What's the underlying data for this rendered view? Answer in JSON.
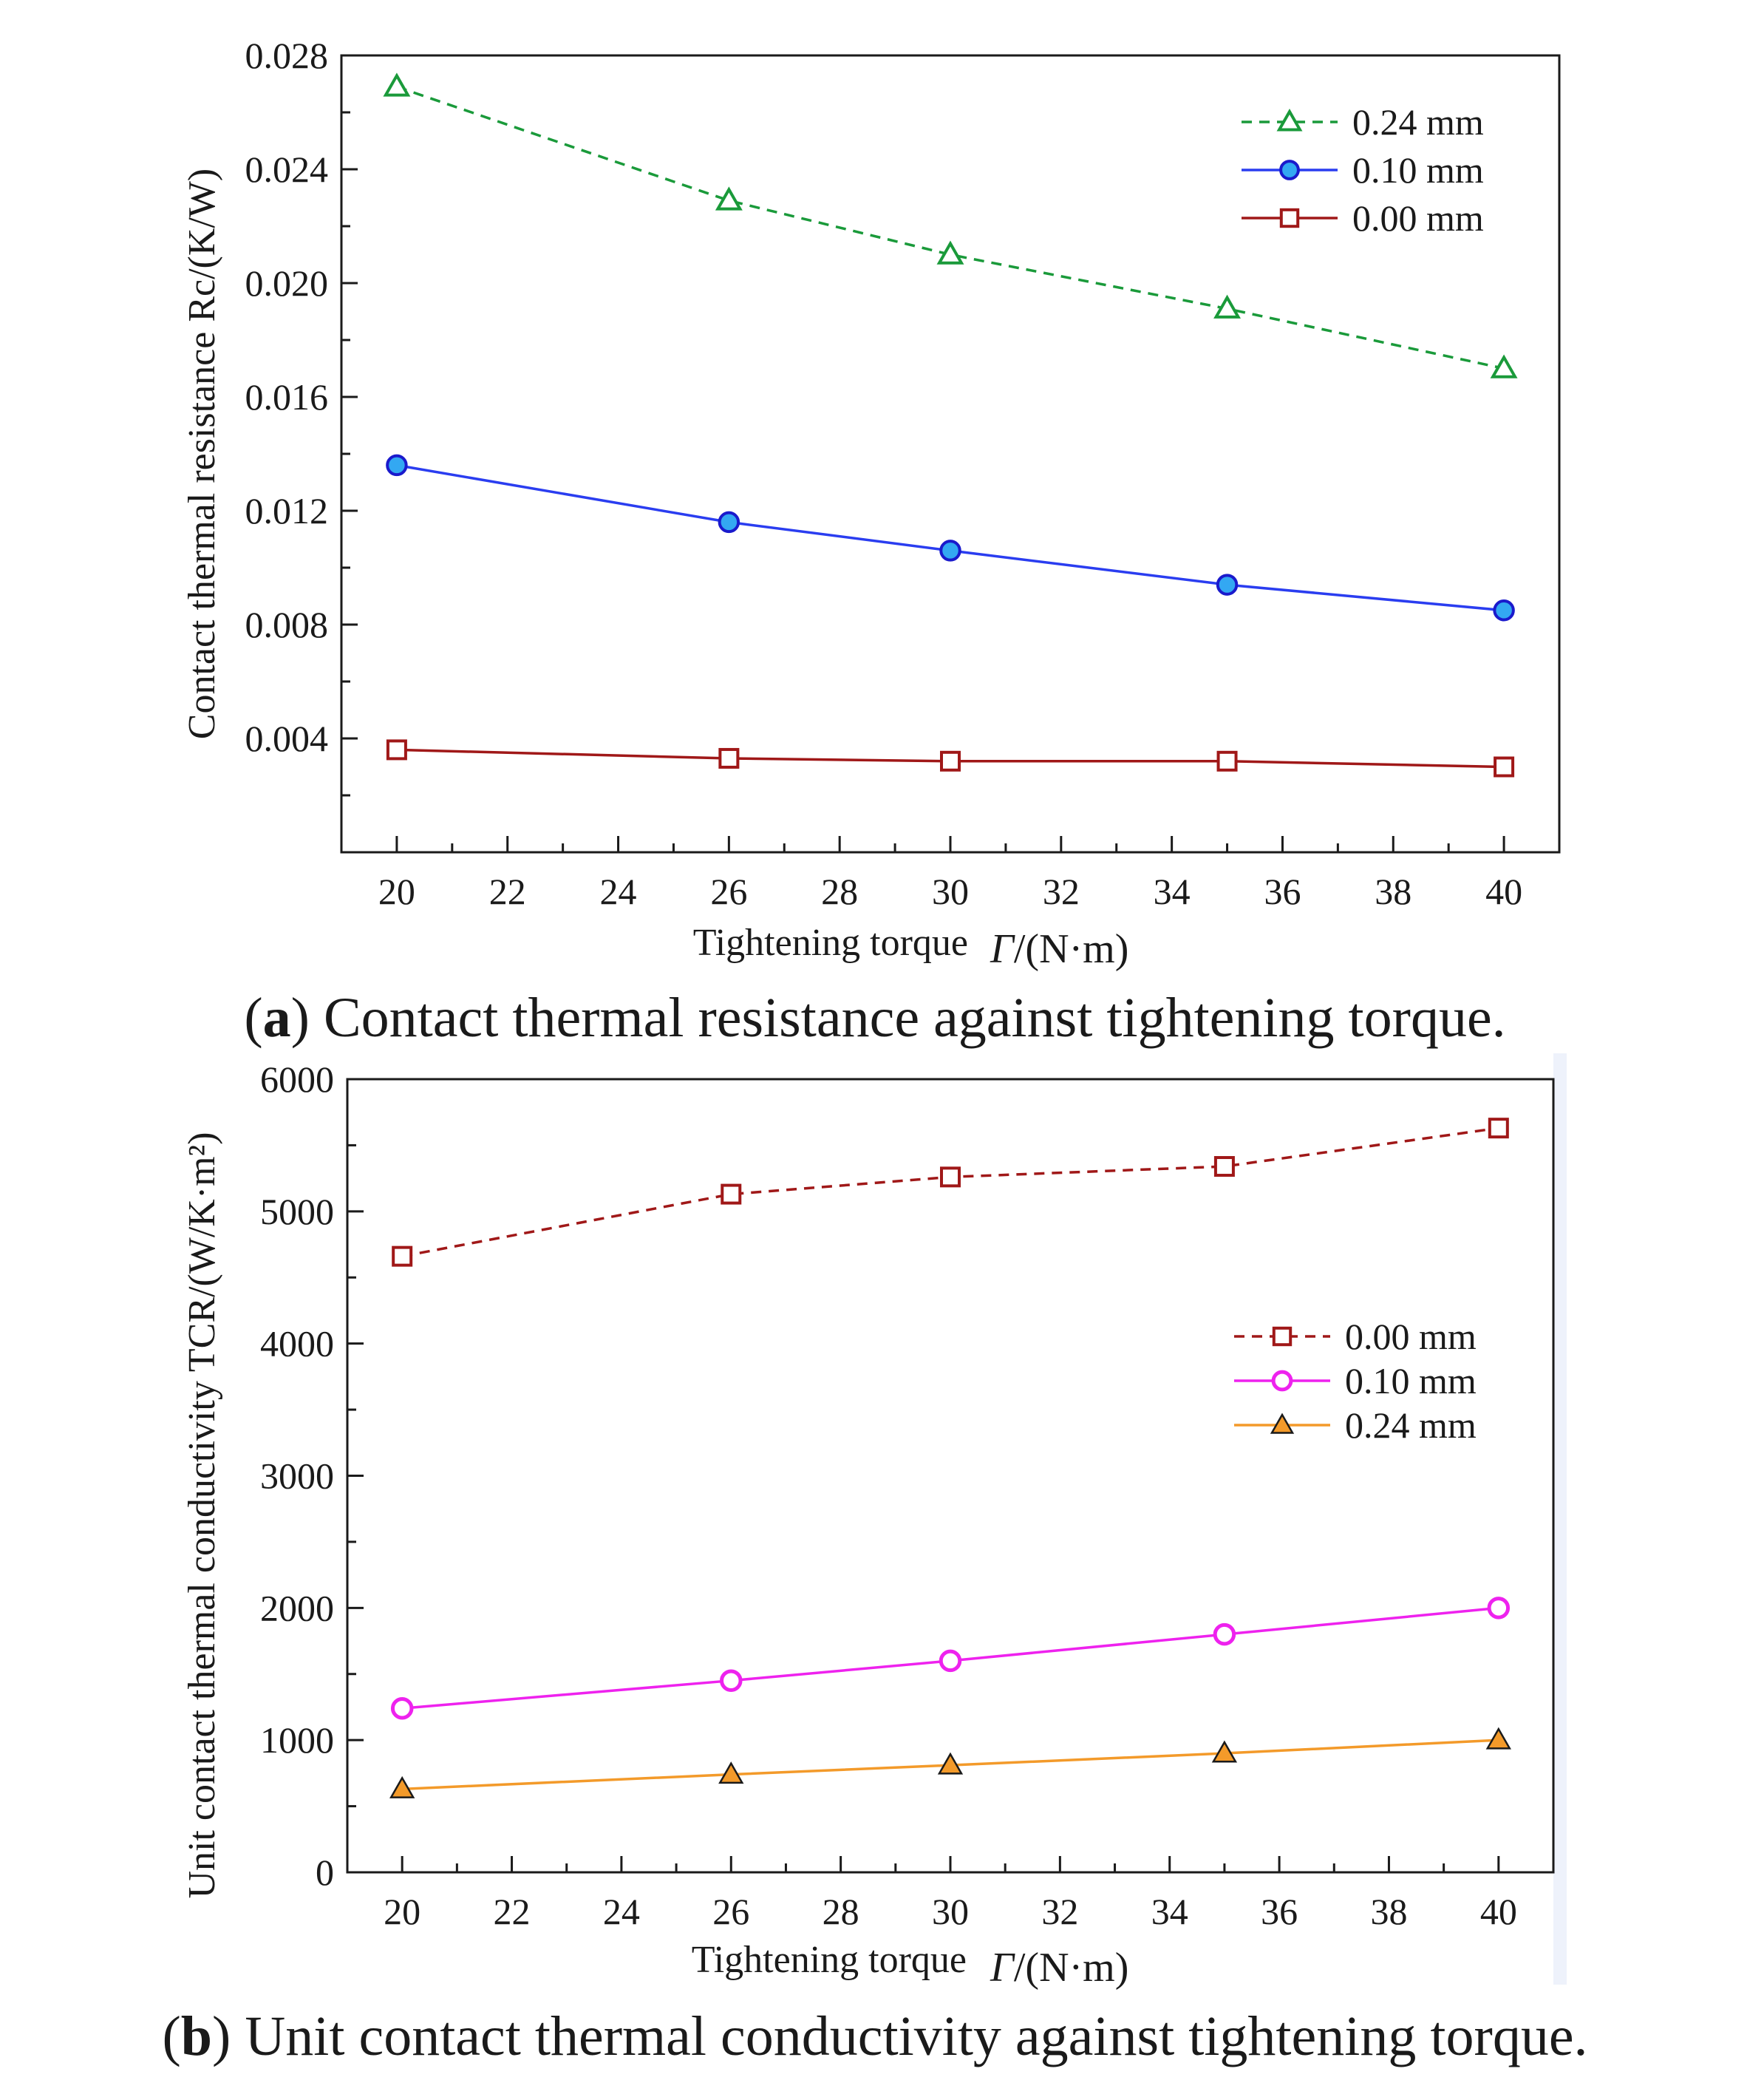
{
  "chart_data": [
    {
      "type": "line",
      "title": "",
      "xlabel": "Tightening torque",
      "xlabel_symbol": "Γ",
      "xlabel_unit": "/(N·m)",
      "ylabel": "Contact thermal resistance Rc/(K/W)",
      "xlim": [
        19,
        41
      ],
      "ylim": [
        0.0,
        0.028
      ],
      "x_ticks": [
        "20",
        "22",
        "24",
        "26",
        "28",
        "30",
        "32",
        "34",
        "36",
        "38",
        "40"
      ],
      "y_ticks": [
        "0.004",
        "0.008",
        "0.012",
        "0.016",
        "0.020",
        "0.024",
        "0.028"
      ],
      "x": [
        20,
        26,
        30,
        35,
        40
      ],
      "legend_position": "top-right",
      "series": [
        {
          "name": "0.24 mm",
          "values": [
            0.0269,
            0.0229,
            0.021,
            0.0191,
            0.017
          ],
          "color": "#1a9a3a",
          "marker": "triangle-open",
          "dashed": true
        },
        {
          "name": "0.10 mm",
          "values": [
            0.0136,
            0.0116,
            0.0106,
            0.0094,
            0.0085
          ],
          "color": "#2a3df0",
          "marker": "circle-blue",
          "dashed": false
        },
        {
          "name": "0.00 mm",
          "values": [
            0.0036,
            0.0033,
            0.0032,
            0.0032,
            0.003
          ],
          "color": "#a01818",
          "marker": "square-open",
          "dashed": false
        }
      ],
      "caption": {
        "label": "a",
        "text": " Contact thermal resistance against tightening torque."
      }
    },
    {
      "type": "line",
      "title": "",
      "xlabel": "Tightening torque",
      "xlabel_symbol": "Γ",
      "xlabel_unit": "/(N·m)",
      "ylabel": "Unit contact thermal conductivity TCR/(W/K·m²)",
      "xlim": [
        19,
        41
      ],
      "ylim": [
        0,
        6000
      ],
      "x_ticks": [
        "20",
        "22",
        "24",
        "26",
        "28",
        "30",
        "32",
        "34",
        "36",
        "38",
        "40"
      ],
      "y_ticks": [
        "0",
        "1000",
        "2000",
        "3000",
        "4000",
        "5000",
        "6000"
      ],
      "x": [
        20,
        26,
        30,
        35,
        40
      ],
      "legend_position": "middle-right",
      "series": [
        {
          "name": "0.00 mm",
          "values": [
            4660,
            5130,
            5260,
            5340,
            5630
          ],
          "color": "#a01818",
          "marker": "square-open",
          "dashed": true
        },
        {
          "name": "0.10 mm",
          "values": [
            1240,
            1450,
            1600,
            1800,
            2000
          ],
          "color": "#ee22ee",
          "marker": "circle-open",
          "dashed": false
        },
        {
          "name": "0.24 mm",
          "values": [
            630,
            740,
            810,
            900,
            1000
          ],
          "color": "#f39a2a",
          "marker": "triangle-filled",
          "dashed": false
        }
      ],
      "caption": {
        "label": "b",
        "text": " Unit contact thermal conductivity against tightening torque."
      }
    }
  ]
}
